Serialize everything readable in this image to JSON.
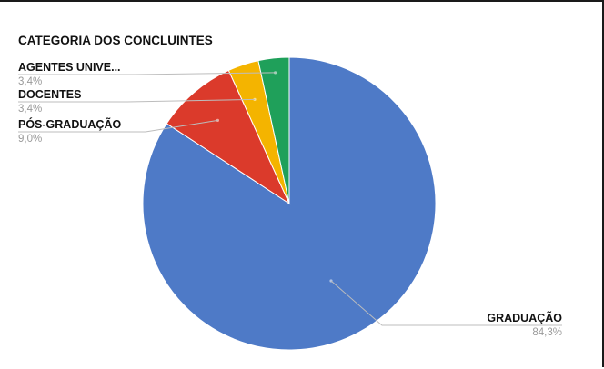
{
  "chart_data": {
    "type": "pie",
    "title": "CATEGORIA DOS CONCLUINTES",
    "slices": [
      {
        "label": "GRADUAÇÃO",
        "value": 84.3,
        "value_label": "84,3%",
        "color": "#4e7ac7"
      },
      {
        "label": "PÓS-GRADUAÇÃO",
        "value": 9.0,
        "value_label": "9,0%",
        "color": "#db3a2b"
      },
      {
        "label": "DOCENTES",
        "value": 3.4,
        "value_label": "3,4%",
        "color": "#f4b400"
      },
      {
        "label": "AGENTES UNIVE...",
        "value": 3.4,
        "value_label": "3,4%",
        "color": "#1fa05a"
      }
    ],
    "start_angle": "12 o'clock",
    "direction": "clockwise",
    "legend": "none (slice labels with leader lines)"
  }
}
